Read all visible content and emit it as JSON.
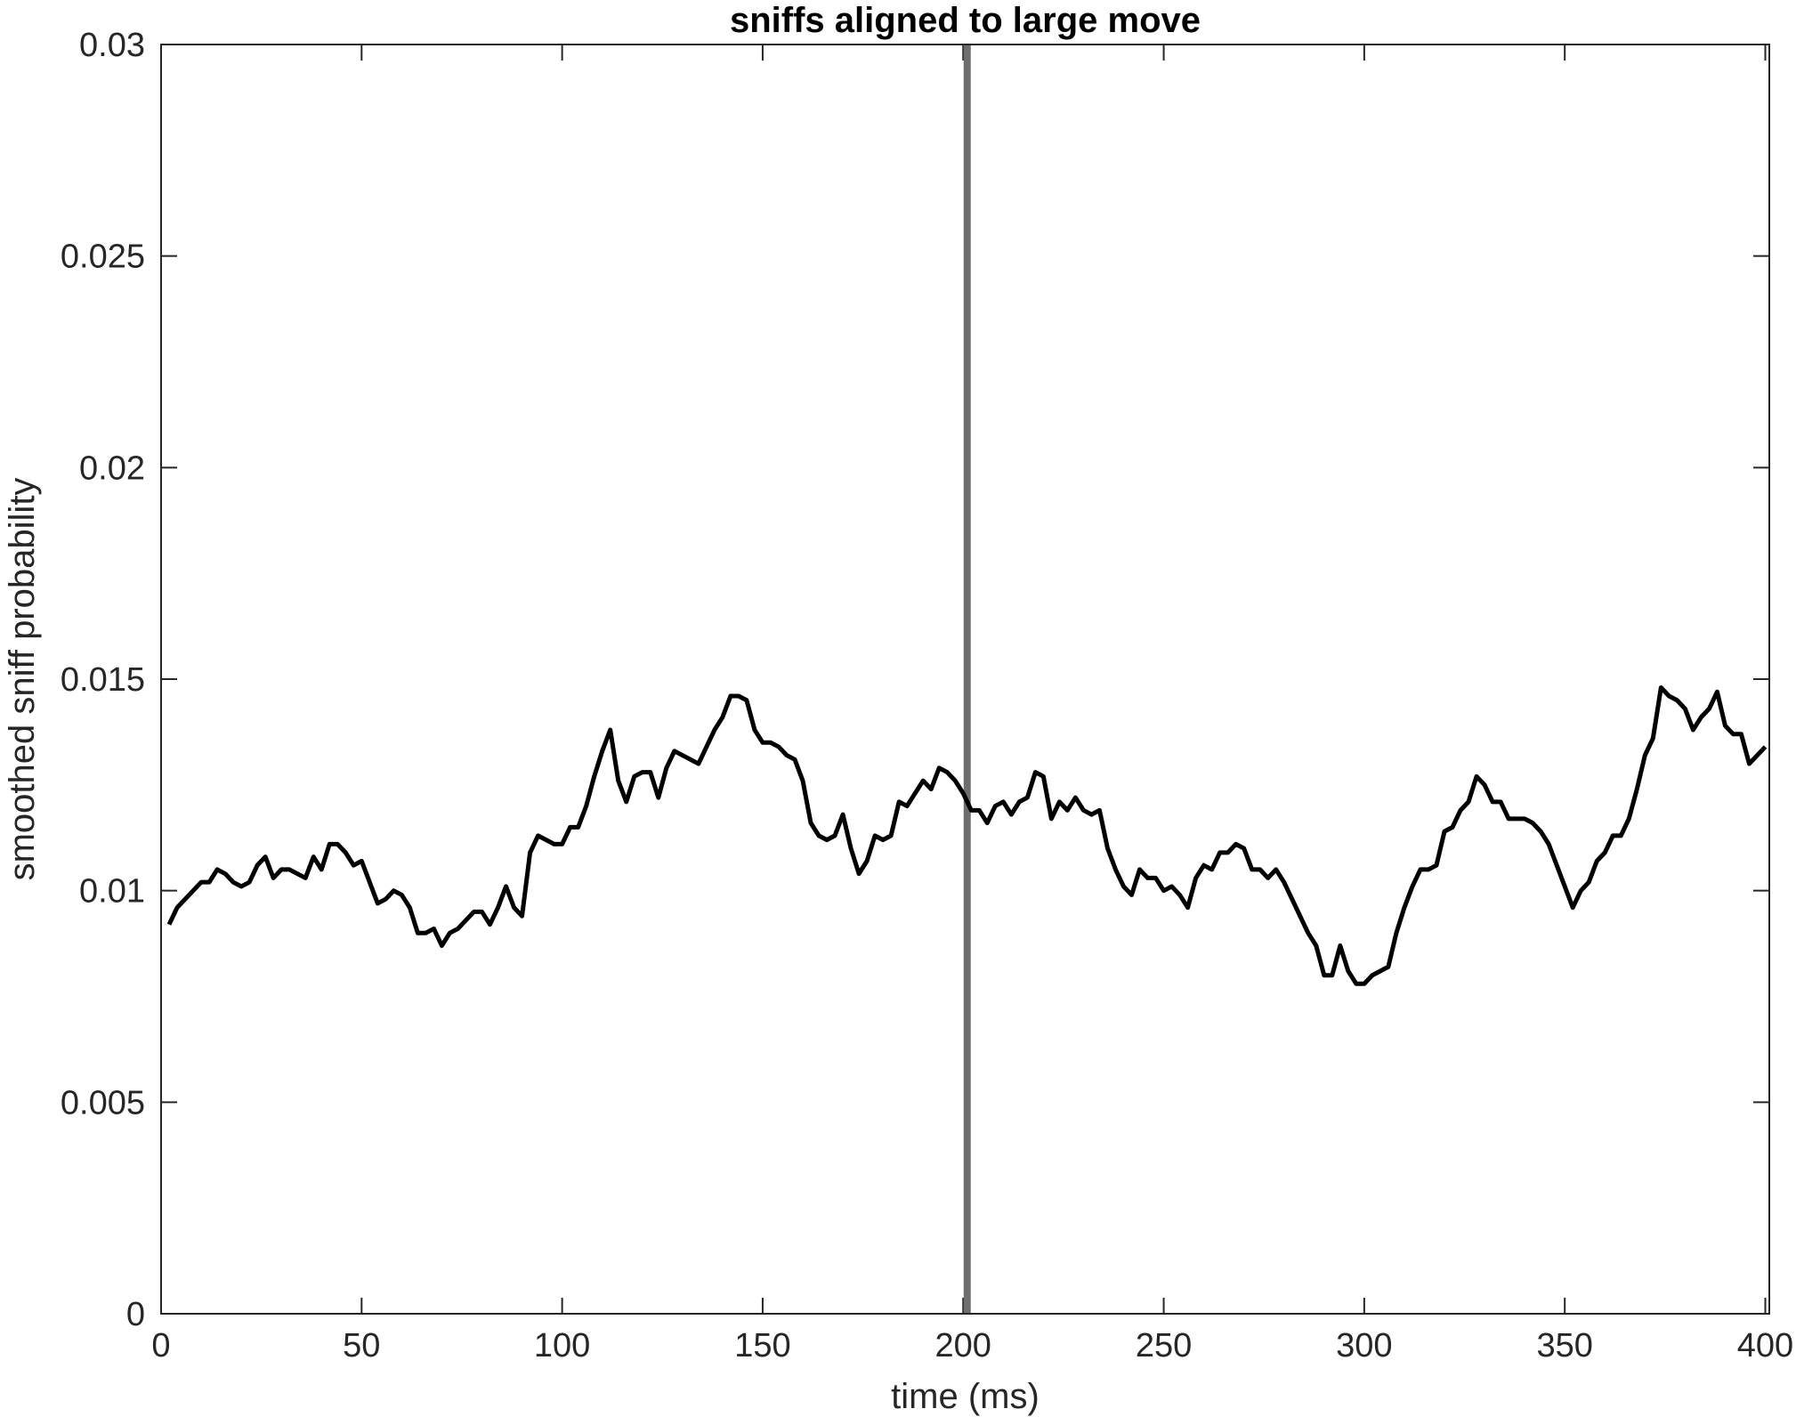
{
  "chart_data": {
    "type": "line",
    "title": "sniffs aligned to large move",
    "xlabel": "time (ms)",
    "ylabel": "smoothed sniff probability",
    "xlim": [
      0,
      401
    ],
    "ylim": [
      0,
      0.03
    ],
    "x_ticks": [
      0,
      50,
      100,
      150,
      200,
      250,
      300,
      350,
      400
    ],
    "x_tick_labels": [
      "0",
      "50",
      "100",
      "150",
      "200",
      "250",
      "300",
      "350",
      "400"
    ],
    "y_ticks": [
      0,
      0.005,
      0.01,
      0.015,
      0.02,
      0.025,
      0.03
    ],
    "y_tick_labels": [
      "0",
      "0.005",
      "0.01",
      "0.015",
      "0.02",
      "0.025",
      "0.03"
    ],
    "grid": false,
    "line_color": "#000000",
    "marker_line_color": "#6e6e6e",
    "vertical_marker_x": 201,
    "series": [
      {
        "x": [
          2,
          4,
          6,
          8,
          10,
          12,
          14,
          16,
          18,
          20,
          22,
          24,
          26,
          28,
          30,
          32,
          34,
          36,
          38,
          40,
          42,
          44,
          46,
          48,
          50,
          52,
          54,
          56,
          58,
          60,
          62,
          64,
          66,
          68,
          70,
          72,
          74,
          76,
          78,
          80,
          82,
          84,
          86,
          88,
          90,
          92,
          94,
          96,
          98,
          100,
          102,
          104,
          106,
          108,
          110,
          112,
          114,
          116,
          118,
          120,
          122,
          124,
          126,
          128,
          130,
          132,
          134,
          136,
          138,
          140,
          142,
          144,
          146,
          148,
          150,
          152,
          154,
          156,
          158,
          160,
          162,
          164,
          166,
          168,
          170,
          172,
          174,
          176,
          178,
          180,
          182,
          184,
          186,
          188,
          190,
          192,
          194,
          196,
          198,
          200,
          202,
          204,
          206,
          208,
          210,
          212,
          214,
          216,
          218,
          220,
          222,
          224,
          226,
          228,
          230,
          232,
          234,
          236,
          238,
          240,
          242,
          244,
          246,
          248,
          250,
          252,
          254,
          256,
          258,
          260,
          262,
          264,
          266,
          268,
          270,
          272,
          274,
          276,
          278,
          280,
          282,
          284,
          286,
          288,
          290,
          292,
          294,
          296,
          298,
          300,
          302,
          304,
          306,
          308,
          310,
          312,
          314,
          316,
          318,
          320,
          322,
          324,
          326,
          328,
          330,
          332,
          334,
          336,
          338,
          340,
          342,
          344,
          346,
          348,
          350,
          352,
          354,
          356,
          358,
          360,
          362,
          364,
          366,
          368,
          370,
          372,
          374,
          376,
          378,
          380,
          382,
          384,
          386,
          388,
          390,
          392,
          394,
          396,
          398,
          400
        ],
        "y": [
          0.0092,
          0.0096,
          0.0098,
          0.01,
          0.0102,
          0.0102,
          0.0105,
          0.0104,
          0.0102,
          0.0101,
          0.0102,
          0.0106,
          0.0108,
          0.0103,
          0.0105,
          0.0105,
          0.0104,
          0.0103,
          0.0108,
          0.0105,
          0.0111,
          0.0111,
          0.0109,
          0.0106,
          0.0107,
          0.0102,
          0.0097,
          0.0098,
          0.01,
          0.0099,
          0.0096,
          0.009,
          0.009,
          0.0091,
          0.0087,
          0.009,
          0.0091,
          0.0093,
          0.0095,
          0.0095,
          0.0092,
          0.0096,
          0.0101,
          0.0096,
          0.0094,
          0.0109,
          0.0113,
          0.0112,
          0.0111,
          0.0111,
          0.0115,
          0.0115,
          0.012,
          0.0127,
          0.0133,
          0.0138,
          0.0126,
          0.0121,
          0.0127,
          0.0128,
          0.0128,
          0.0122,
          0.0129,
          0.0133,
          0.0132,
          0.0131,
          0.013,
          0.0134,
          0.0138,
          0.0141,
          0.0146,
          0.0146,
          0.0145,
          0.0138,
          0.0135,
          0.0135,
          0.0134,
          0.0132,
          0.0131,
          0.0126,
          0.0116,
          0.0113,
          0.0112,
          0.0113,
          0.0118,
          0.011,
          0.0104,
          0.0107,
          0.0113,
          0.0112,
          0.0113,
          0.0121,
          0.012,
          0.0123,
          0.0126,
          0.0124,
          0.0129,
          0.0128,
          0.0126,
          0.0123,
          0.0119,
          0.0119,
          0.0116,
          0.012,
          0.0121,
          0.0118,
          0.0121,
          0.0122,
          0.0128,
          0.0127,
          0.0117,
          0.0121,
          0.0119,
          0.0122,
          0.0119,
          0.0118,
          0.0119,
          0.011,
          0.0105,
          0.0101,
          0.0099,
          0.0105,
          0.0103,
          0.0103,
          0.01,
          0.0101,
          0.0099,
          0.0096,
          0.0103,
          0.0106,
          0.0105,
          0.0109,
          0.0109,
          0.0111,
          0.011,
          0.0105,
          0.0105,
          0.0103,
          0.0105,
          0.0102,
          0.0098,
          0.0094,
          0.009,
          0.0087,
          0.008,
          0.008,
          0.0087,
          0.0081,
          0.0078,
          0.0078,
          0.008,
          0.0081,
          0.0082,
          0.009,
          0.0096,
          0.0101,
          0.0105,
          0.0105,
          0.0106,
          0.0114,
          0.0115,
          0.0119,
          0.0121,
          0.0127,
          0.0125,
          0.0121,
          0.0121,
          0.0117,
          0.0117,
          0.0117,
          0.0116,
          0.0114,
          0.0111,
          0.0106,
          0.0101,
          0.0096,
          0.01,
          0.0102,
          0.0107,
          0.0109,
          0.0113,
          0.0113,
          0.0117,
          0.0124,
          0.0132,
          0.0136,
          0.0148,
          0.0146,
          0.0145,
          0.0143,
          0.0138,
          0.0141,
          0.0143,
          0.0147,
          0.0139,
          0.0137,
          0.0137,
          0.013,
          0.0132,
          0.0134
        ]
      }
    ]
  }
}
